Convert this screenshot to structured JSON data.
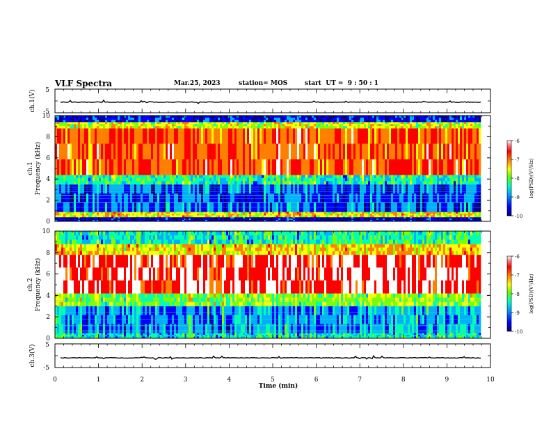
{
  "header": {
    "title": "VLF Spectra",
    "date": "Mar.25, 2023",
    "station": "station= MOS",
    "start": "start  UT =  9 : 50 : 1"
  },
  "chart_data": [
    {
      "type": "line",
      "panel": "ch1-voltage",
      "ylabel": "ch.1(V)",
      "ylim": [
        -5,
        5
      ],
      "y_ticks": [
        "5",
        "-5"
      ],
      "xlim": [
        0,
        10
      ],
      "series": [
        {
          "approx_level": -0.5
        }
      ]
    },
    {
      "type": "heatmap",
      "panel": "ch1-spectrogram",
      "ylabel": "ch.1\nFrequency (kHz)",
      "y_ticks": [
        "0",
        "2",
        "4",
        "6",
        "8",
        "10"
      ],
      "ylim": [
        0,
        10
      ],
      "xlim": [
        0,
        10
      ],
      "data_end_min": 9.8,
      "band_khz": [
        {
          "from": 0,
          "to": 0.4,
          "level": -9.8
        },
        {
          "from": 0.4,
          "to": 0.9,
          "level": -7.5
        },
        {
          "from": 0.9,
          "to": 3.5,
          "level": -9.3
        },
        {
          "from": 3.5,
          "to": 4.4,
          "level": -8.5
        },
        {
          "from": 4.4,
          "to": 8.8,
          "level": -6.8
        },
        {
          "from": 8.8,
          "to": 9.4,
          "level": -7.7
        },
        {
          "from": 9.4,
          "to": 10,
          "level": -9.6
        }
      ],
      "colorbar": {
        "label": "log(PSD)(V²/Hz)",
        "ticks": [
          "-6",
          "-7",
          "-8",
          "-9",
          "-10"
        ],
        "range": [
          -10,
          -6
        ]
      }
    },
    {
      "type": "heatmap",
      "panel": "ch2-spectrogram",
      "ylabel": "ch.2\nFrequency (kHz)",
      "y_ticks": [
        "0",
        "2",
        "4",
        "6",
        "8",
        "10"
      ],
      "ylim": [
        0,
        10
      ],
      "xlim": [
        0,
        10
      ],
      "data_end_min": 9.8,
      "band_khz": [
        {
          "from": 0,
          "to": 0.5,
          "level": -8.6
        },
        {
          "from": 0.5,
          "to": 3.0,
          "level": -9.0
        },
        {
          "from": 3.0,
          "to": 4.2,
          "level": -8.0
        },
        {
          "from": 4.2,
          "to": 7.8,
          "level": -6.3
        },
        {
          "from": 7.8,
          "to": 8.8,
          "level": -7.4
        },
        {
          "from": 8.8,
          "to": 10,
          "level": -8.5
        }
      ],
      "colorbar": {
        "label": "log(PSD)(V²/Hz)",
        "ticks": [
          "-6",
          "-7",
          "-8",
          "-9",
          "-10"
        ],
        "range": [
          -10,
          -6
        ]
      }
    },
    {
      "type": "line",
      "panel": "ch3-voltage",
      "ylabel": "ch.3(V)",
      "ylim": [
        -5,
        5
      ],
      "y_ticks": [
        "5",
        "-5"
      ],
      "xlim": [
        0,
        10
      ],
      "series": [
        {
          "approx_level": -0.9
        }
      ]
    }
  ],
  "x_axis": {
    "label": "Time  (min)",
    "ticks": [
      "0",
      "1",
      "2",
      "3",
      "4",
      "5",
      "6",
      "7",
      "8",
      "9",
      "10"
    ]
  },
  "colors": {
    "scale": [
      "#000090",
      "#0000ff",
      "#00b0ff",
      "#00ffb0",
      "#80ff00",
      "#ffff00",
      "#ff8000",
      "#ff0000",
      "#ffffff"
    ]
  }
}
